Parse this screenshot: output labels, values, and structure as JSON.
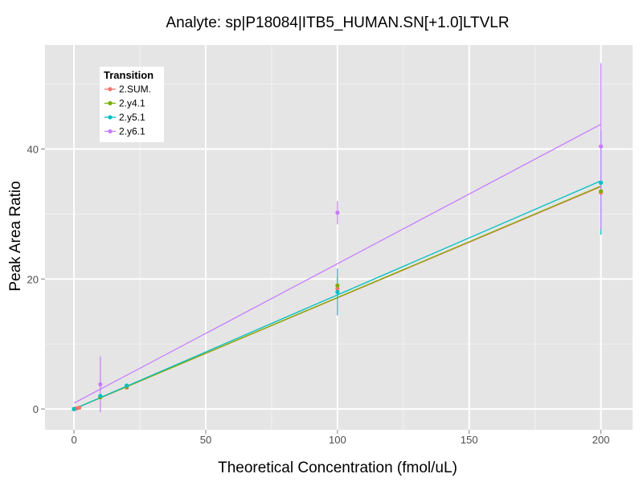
{
  "chart_data": {
    "type": "scatter",
    "title": "Analyte: sp|P18084|ITB5_HUMAN.SN[+1.0]LTVLR",
    "xlabel": "Theoretical Concentration (fmol/uL)",
    "ylabel": "Peak Area Ratio",
    "xlim": [
      -11,
      212
    ],
    "ylim": [
      -3.2,
      56
    ],
    "x_ticks": [
      0,
      50,
      100,
      150,
      200
    ],
    "y_ticks": [
      0,
      20,
      40
    ],
    "x_tick_labels": [
      "0",
      "50",
      "100",
      "150",
      "200"
    ],
    "y_tick_labels": [
      "0",
      "20",
      "40"
    ],
    "grid": true,
    "background": "#e5e5e5",
    "legend": {
      "title": "Transition",
      "placement": "top-left"
    },
    "series": [
      {
        "name": "2.SUM.",
        "color": "#f8766d",
        "points": [
          {
            "x": 0,
            "y": 0.0
          },
          {
            "x": 0.5,
            "y": 0.05
          },
          {
            "x": 1,
            "y": 0.1
          },
          {
            "x": 2,
            "y": 0.2
          },
          {
            "x": 10,
            "y": 1.9,
            "err": 0.3
          },
          {
            "x": 20,
            "y": 3.3,
            "err": 0.3
          },
          {
            "x": 100,
            "y": 18.5,
            "err": 1.0
          },
          {
            "x": 200,
            "y": 33.3,
            "err": 0.6
          }
        ],
        "fit": [
          [
            0,
            0.0
          ],
          [
            200,
            34.2
          ]
        ]
      },
      {
        "name": "2.y4.1",
        "color": "#7cae00",
        "points": [
          {
            "x": 0,
            "y": 0.0
          },
          {
            "x": 10,
            "y": 1.8,
            "err": 0.3
          },
          {
            "x": 20,
            "y": 3.4,
            "err": 0.3
          },
          {
            "x": 100,
            "y": 19.0,
            "err": 1.3
          },
          {
            "x": 200,
            "y": 33.5,
            "err": 0.8
          }
        ],
        "fit": [
          [
            0,
            0.0
          ],
          [
            200,
            34.3
          ]
        ]
      },
      {
        "name": "2.y5.1",
        "color": "#00bfc4",
        "points": [
          {
            "x": 0,
            "y": 0.0
          },
          {
            "x": 10,
            "y": 2.0,
            "err": 0.3
          },
          {
            "x": 20,
            "y": 3.6,
            "err": 0.3
          },
          {
            "x": 100,
            "y": 18.0,
            "err": 3.6
          },
          {
            "x": 200,
            "y": 34.8,
            "err": 8.0
          }
        ],
        "fit": [
          [
            0,
            0.0
          ],
          [
            200,
            35.1
          ]
        ]
      },
      {
        "name": "2.y6.1",
        "color": "#c77cff",
        "points": [
          {
            "x": 10,
            "y": 3.8,
            "err": 4.3
          },
          {
            "x": 100,
            "y": 30.2,
            "err": 1.8
          },
          {
            "x": 200,
            "y": 40.4,
            "err": 12.8
          }
        ],
        "fit": [
          [
            0,
            0.9
          ],
          [
            200,
            43.8
          ]
        ]
      }
    ]
  }
}
